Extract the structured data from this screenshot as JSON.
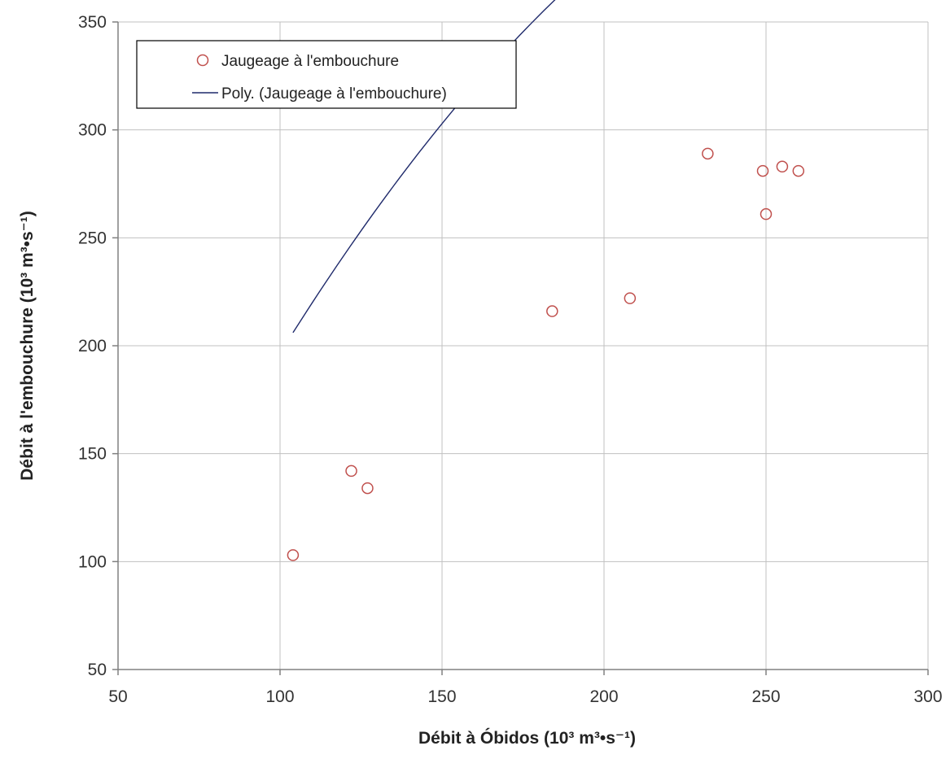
{
  "chart_data": {
    "type": "scatter",
    "title": "",
    "xlabel": "Débit à Óbidos (10³ m³•s⁻¹)",
    "ylabel": "Débit à l'embouchure (10³ m³•s⁻¹)",
    "xlim": [
      50,
      300
    ],
    "ylim": [
      50,
      350
    ],
    "xticks": [
      50,
      100,
      150,
      200,
      250,
      300
    ],
    "yticks": [
      50,
      100,
      150,
      200,
      250,
      300,
      350
    ],
    "grid": true,
    "legend_position": "top-left",
    "series": [
      {
        "name": "Jaugeage à l'embouchure",
        "kind": "scatter",
        "marker": "open-circle",
        "color": "#c0504d",
        "points": [
          {
            "x": 104,
            "y": 103
          },
          {
            "x": 122,
            "y": 142
          },
          {
            "x": 127,
            "y": 134
          },
          {
            "x": 184,
            "y": 216
          },
          {
            "x": 208,
            "y": 222
          },
          {
            "x": 232,
            "y": 289
          },
          {
            "x": 249,
            "y": 281
          },
          {
            "x": 250,
            "y": 261
          },
          {
            "x": 255,
            "y": 283
          },
          {
            "x": 260,
            "y": 281
          }
        ]
      },
      {
        "name": "Poly. (Jaugeage à l'embouchure)",
        "kind": "trendline",
        "color": "#1f2a6b",
        "x_range": [
          104,
          259
        ],
        "polynomial_coefficients": [
          -101.5,
          3.548,
          -0.00568
        ]
      }
    ]
  }
}
